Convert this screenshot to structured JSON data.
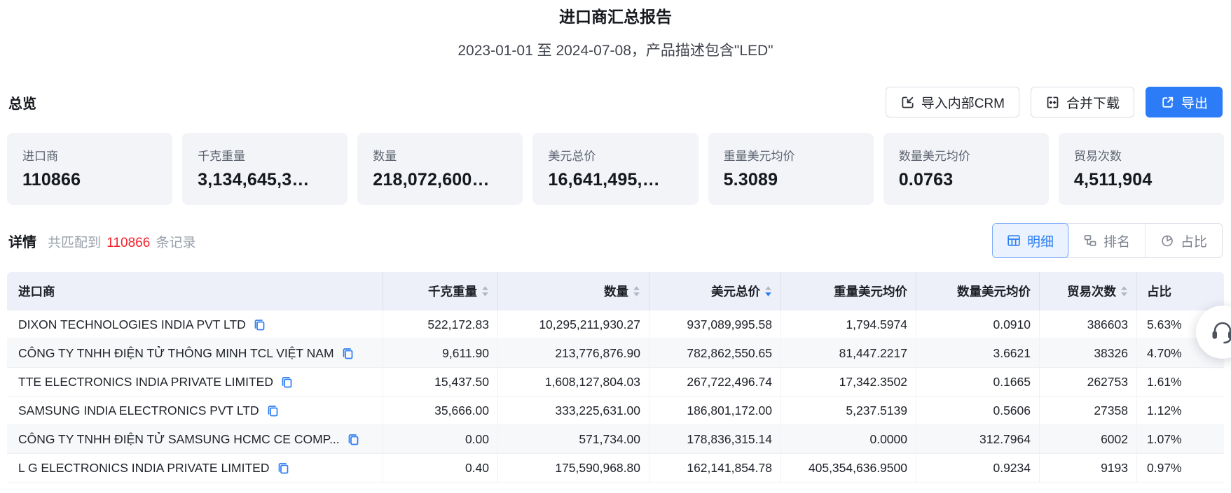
{
  "header": {
    "title": "进口商汇总报告",
    "subtitle": "2023-01-01 至 2024-07-08，产品描述包含\"LED\""
  },
  "overview": {
    "label": "总览",
    "buttons": {
      "import_crm": "导入内部CRM",
      "merge_download": "合并下载",
      "export": "导出"
    },
    "stats": [
      {
        "label": "进口商",
        "value": "110866"
      },
      {
        "label": "千克重量",
        "value": "3,134,645,3…"
      },
      {
        "label": "数量",
        "value": "218,072,600…"
      },
      {
        "label": "美元总价",
        "value": "16,641,495,…"
      },
      {
        "label": "重量美元均价",
        "value": "5.3089"
      },
      {
        "label": "数量美元均价",
        "value": "0.0763"
      },
      {
        "label": "贸易次数",
        "value": "4,511,904"
      }
    ]
  },
  "details": {
    "label": "详情",
    "match_prefix": "共匹配到",
    "match_count": "110866",
    "match_suffix": "条记录",
    "tabs": [
      {
        "label": "明细",
        "icon": "table-icon",
        "active": true
      },
      {
        "label": "排名",
        "icon": "ranking-icon",
        "active": false
      },
      {
        "label": "占比",
        "icon": "pie-icon",
        "active": false
      }
    ]
  },
  "table": {
    "columns": [
      {
        "key": "name",
        "label": "进口商",
        "sortable": false,
        "align": "left"
      },
      {
        "key": "kg",
        "label": "千克重量",
        "sortable": true
      },
      {
        "key": "qty",
        "label": "数量",
        "sortable": true
      },
      {
        "key": "usd",
        "label": "美元总价",
        "sortable": true,
        "sort": "desc"
      },
      {
        "key": "kg_avg",
        "label": "重量美元均价",
        "sortable": false
      },
      {
        "key": "qty_avg",
        "label": "数量美元均价",
        "sortable": false
      },
      {
        "key": "trades",
        "label": "贸易次数",
        "sortable": true
      },
      {
        "key": "share",
        "label": "占比",
        "sortable": false,
        "align": "left"
      }
    ],
    "rows": [
      {
        "name": "DIXON TECHNOLOGIES INDIA PVT LTD",
        "kg": "522,172.83",
        "qty": "10,295,211,930.27",
        "usd": "937,089,995.58",
        "kg_avg": "1,794.5974",
        "qty_avg": "0.0910",
        "trades": "386603",
        "share": "5.63%",
        "shaded": false
      },
      {
        "name": "CÔNG TY TNHH ĐIỆN TỬ THÔNG MINH TCL VIỆT NAM",
        "kg": "9,611.90",
        "qty": "213,776,876.90",
        "usd": "782,862,550.65",
        "kg_avg": "81,447.2217",
        "qty_avg": "3.6621",
        "trades": "38326",
        "share": "4.70%",
        "shaded": true
      },
      {
        "name": "TTE ELECTRONICS INDIA PRIVATE LIMITED",
        "kg": "15,437.50",
        "qty": "1,608,127,804.03",
        "usd": "267,722,496.74",
        "kg_avg": "17,342.3502",
        "qty_avg": "0.1665",
        "trades": "262753",
        "share": "1.61%",
        "shaded": false
      },
      {
        "name": "SAMSUNG INDIA ELECTRONICS PVT LTD",
        "kg": "35,666.00",
        "qty": "333,225,631.00",
        "usd": "186,801,172.00",
        "kg_avg": "5,237.5139",
        "qty_avg": "0.5606",
        "trades": "27358",
        "share": "1.12%",
        "shaded": false
      },
      {
        "name": "CÔNG TY TNHH ĐIỆN TỬ SAMSUNG HCMC CE COMP...",
        "kg": "0.00",
        "qty": "571,734.00",
        "usd": "178,836,315.14",
        "kg_avg": "0.0000",
        "qty_avg": "312.7964",
        "trades": "6002",
        "share": "1.07%",
        "shaded": true
      },
      {
        "name": "L G ELECTRONICS INDIA PRIVATE LIMITED",
        "kg": "0.40",
        "qty": "175,590,968.80",
        "usd": "162,141,854.78",
        "kg_avg": "405,354,636.9500",
        "qty_avg": "0.9234",
        "trades": "9193",
        "share": "0.97%",
        "shaded": false
      }
    ]
  },
  "floating": {
    "support_icon": "headset-icon"
  },
  "colors": {
    "accent": "#2b7cf6",
    "accent_light_bg": "#e9f2fe",
    "record_count_red": "#f5222d",
    "card_bg": "#f2f4f8",
    "table_header_bg": "#edf0f9"
  }
}
